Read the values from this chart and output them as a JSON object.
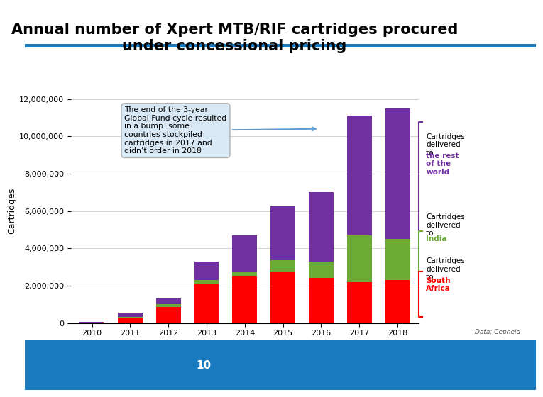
{
  "years": [
    "2010",
    "2011",
    "2012",
    "2013",
    "2014",
    "2015",
    "2016",
    "2017",
    "2018"
  ],
  "south_africa": [
    30000,
    280000,
    850000,
    2100000,
    2500000,
    2750000,
    2400000,
    2200000,
    2300000
  ],
  "india": [
    0,
    50000,
    150000,
    200000,
    200000,
    600000,
    900000,
    2500000,
    2200000
  ],
  "rest_of_world": [
    20000,
    230000,
    300000,
    1000000,
    2000000,
    2900000,
    3700000,
    6400000,
    7000000
  ],
  "south_africa_color": "#ff0000",
  "india_color": "#6aaa35",
  "rest_of_world_color": "#7030a0",
  "title_line1": "Annual number of Xpert MTB/RIF cartridges procured",
  "title_line2": "under concessional pricing",
  "ylabel": "Cartridges",
  "ylim": [
    0,
    12000000
  ],
  "yticks": [
    0,
    2000000,
    4000000,
    6000000,
    8000000,
    10000000,
    12000000
  ],
  "annotation_text": "The end of the 3-year\nGlobal Fund cycle resulted\nin a bump: some\ncountries stockpiled\ncartridges in 2017 and\ndidn’t order in 2018",
  "data_source": "Data: Cepheid",
  "bg_color": "#ffffff",
  "plot_bg_color": "#ffffff",
  "title_fontsize": 15,
  "axis_fontsize": 9,
  "tick_fontsize": 8,
  "footer_color": "#1a7abf",
  "footer_text": "10"
}
